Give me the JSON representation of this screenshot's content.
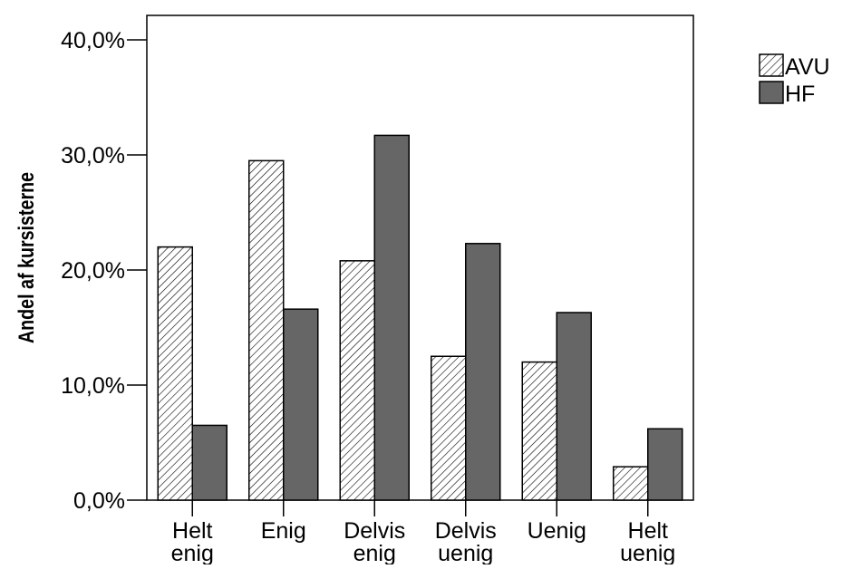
{
  "chart_data": {
    "type": "bar",
    "ylabel": "Andel af kursisterne",
    "xlabel": "",
    "categories": [
      [
        "Helt",
        "enig"
      ],
      [
        "Enig"
      ],
      [
        "Delvis",
        "enig"
      ],
      [
        "Delvis",
        "uenig"
      ],
      [
        "Uenig"
      ],
      [
        "Helt",
        "uenig"
      ]
    ],
    "series": [
      {
        "name": "AVU",
        "pattern": "hatched",
        "values": [
          22.0,
          29.5,
          20.8,
          12.5,
          12.0,
          2.9
        ]
      },
      {
        "name": "HF",
        "color": "#666666",
        "values": [
          6.5,
          16.6,
          31.7,
          22.3,
          16.3,
          6.2
        ]
      }
    ],
    "ylim": [
      0,
      40
    ],
    "yticks": [
      0,
      10,
      20,
      30,
      40
    ],
    "ytick_labels": [
      "0,0%",
      "10,0%",
      "20,0%",
      "30,0%",
      "40,0%"
    ],
    "grid": false,
    "legend_position": "top-right"
  }
}
